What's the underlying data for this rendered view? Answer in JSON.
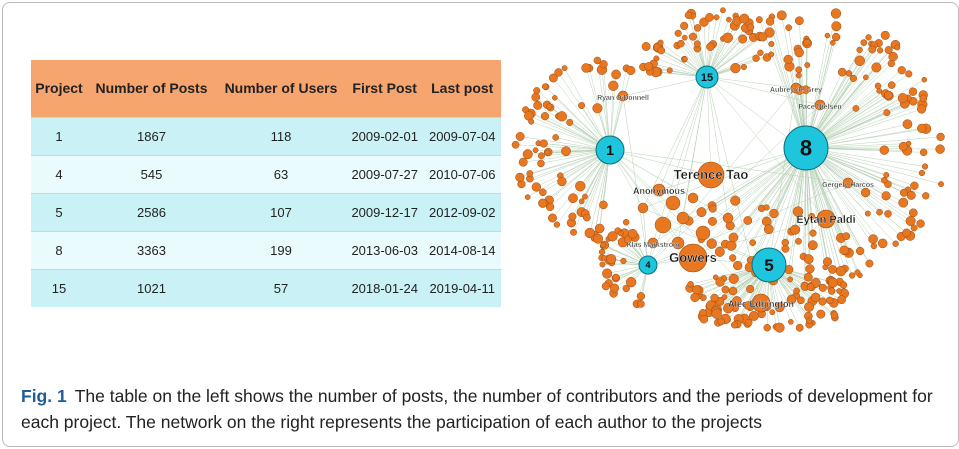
{
  "table": {
    "header": [
      "Project",
      "Number of Posts",
      "Number of Users",
      "First Post",
      "Last post"
    ],
    "rows": [
      [
        "1",
        "1867",
        "118",
        "2009-02-01",
        "2009-07-04"
      ],
      [
        "4",
        "545",
        "63",
        "2009-07-27",
        "2010-07-06"
      ],
      [
        "5",
        "2586",
        "107",
        "2009-12-17",
        "2012-09-02"
      ],
      [
        "8",
        "3363",
        "199",
        "2013-06-03",
        "2014-08-14"
      ],
      [
        "15",
        "1021",
        "57",
        "2018-01-24",
        "2019-04-11"
      ]
    ]
  },
  "network": {
    "projects": [
      "1",
      "4",
      "5",
      "8",
      "15"
    ],
    "authors": [
      "Terence Tao",
      "Gowers",
      "Eytan Paldi",
      "Alec Edgington",
      "Anonymous",
      "Klas Markström",
      "Ryan O'Donnell",
      "Aubrey de Grey",
      "Pace Nielsen",
      "Gergely Harcos"
    ]
  },
  "caption": {
    "label": "Fig. 1",
    "text": "The table on the left shows the number of posts, the number of contributors and the periods of development for each project. The network on the right represents the participation of each author to the projects"
  }
}
